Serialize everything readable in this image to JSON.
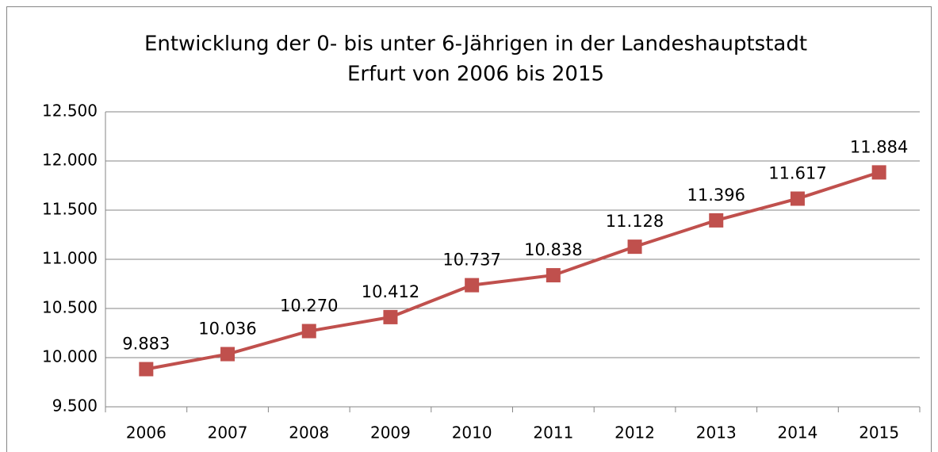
{
  "chart_data": {
    "type": "line",
    "title": [
      "Entwicklung der 0- bis unter 6-Jährigen in der Landeshauptstadt",
      "Erfurt von 2006 bis 2015"
    ],
    "categories": [
      "2006",
      "2007",
      "2008",
      "2009",
      "2010",
      "2011",
      "2012",
      "2013",
      "2014",
      "2015"
    ],
    "series": [
      {
        "name": "0- bis unter 6-Jährige",
        "color": "#c0504d",
        "values": [
          9883,
          10036,
          10270,
          10412,
          10737,
          10838,
          11128,
          11396,
          11617,
          11884
        ],
        "value_labels": [
          "9.883",
          "10.036",
          "10.270",
          "10.412",
          "10.737",
          "10.838",
          "11.128",
          "11.396",
          "11.617",
          "11.884"
        ]
      }
    ],
    "ylim": [
      9500,
      12500
    ],
    "yticks": [
      {
        "value": 9500,
        "label": "9.500"
      },
      {
        "value": 10000,
        "label": "10.000"
      },
      {
        "value": 10500,
        "label": "10.500"
      },
      {
        "value": 11000,
        "label": "11.000"
      },
      {
        "value": 11500,
        "label": "11.500"
      },
      {
        "value": 12000,
        "label": "12.000"
      },
      {
        "value": 12500,
        "label": "12.500"
      }
    ],
    "grid": true
  }
}
